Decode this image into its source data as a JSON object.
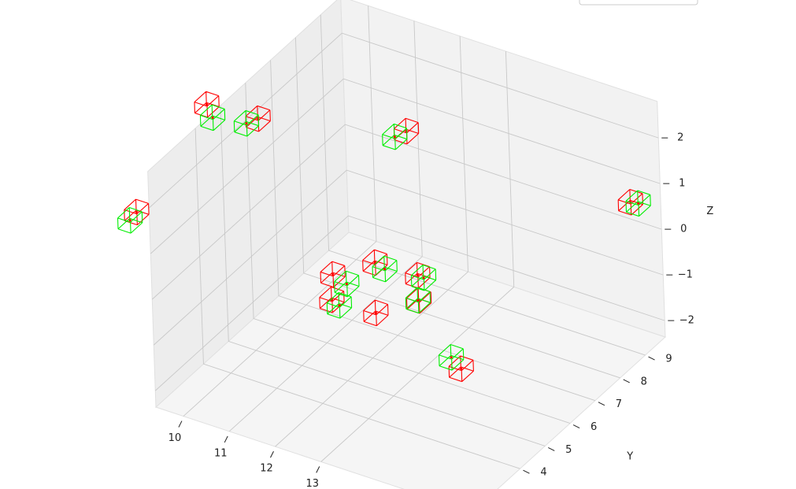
{
  "chart_data": {
    "type": "scatter3d",
    "series": [
      {
        "color": "#ff0000",
        "x": [
          8.53,
          9.65,
          12.91,
          6.9,
          17.8,
          12.12,
          11.18,
          13.05,
          11.14,
          12.1,
          13.06,
          13.94
        ],
        "y": [
          6,
          6,
          6,
          6,
          6,
          6,
          6,
          6,
          6,
          6,
          6,
          6
        ],
        "z": [
          2.04,
          2.1,
          2.91,
          -0.86,
          2.98,
          -0.23,
          -0.8,
          -0.2,
          -1.37,
          -1.34,
          -0.75,
          -1.95
        ]
      },
      {
        "color": "#00ee00",
        "x": [
          8.65,
          9.39,
          12.65,
          6.75,
          17.97,
          12.33,
          11.48,
          13.18,
          11.3,
          13.04,
          13.73
        ],
        "y": [
          6,
          6,
          6,
          6,
          6,
          6,
          6,
          6,
          6,
          6,
          6
        ],
        "z": [
          1.79,
          1.91,
          2.7,
          -1.09,
          3.01,
          -0.3,
          -0.91,
          -0.21,
          -1.44,
          -0.75,
          -1.77
        ]
      }
    ],
    "xlim": [
      9.4,
      16.3
    ],
    "ylim": [
      2.1,
      9.8
    ],
    "zlim": [
      -2.36,
      2.8
    ],
    "xticks": [
      10,
      11,
      12,
      13
    ],
    "yticks": [
      4,
      5,
      6,
      7,
      8,
      9
    ],
    "zticks": [
      {
        "value": -2,
        "label": "−2"
      },
      {
        "value": -1,
        "label": "−1"
      },
      0,
      1,
      2
    ],
    "ylabel": "Y",
    "zlabel": "Z",
    "grid": true
  }
}
